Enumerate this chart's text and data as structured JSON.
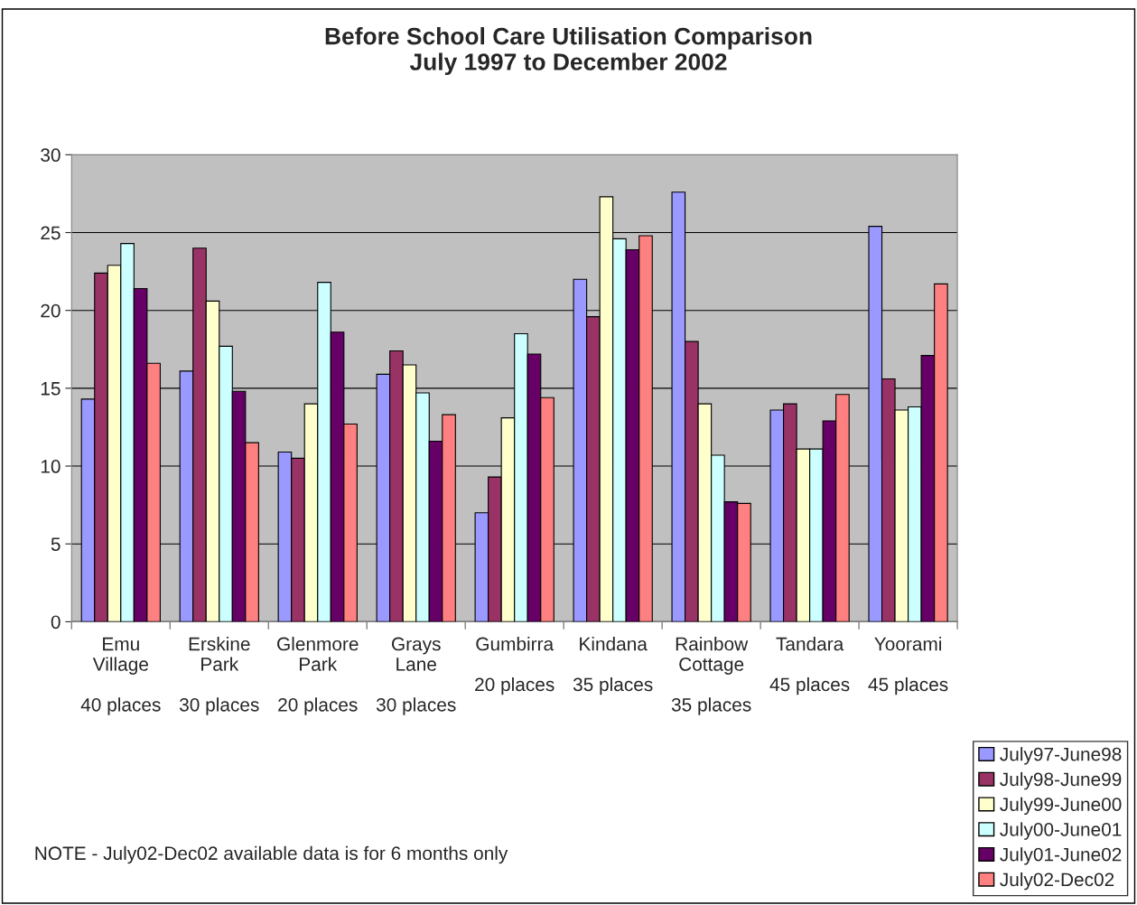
{
  "chart_data": {
    "type": "bar",
    "title": "Before School Care Utilisation Comparison\nJuly 1997 to December 2002",
    "categories": [
      "Emu\nVillage\n\n40 places",
      "Erskine\nPark\n\n30 places",
      "Glenmore\nPark\n\n20 places",
      "Grays\nLane\n\n30 places",
      "Gumbirra\n\n20 places",
      "Kindana\n\n35 places",
      "Rainbow\nCottage\n\n35 places",
      "Tandara\n\n45 places",
      "Yoorami\n\n45 places"
    ],
    "series": [
      {
        "name": "July97-June98",
        "color": "#9999ff",
        "values": [
          14.3,
          16.1,
          10.9,
          15.9,
          7.0,
          22.0,
          27.6,
          13.6,
          25.4
        ]
      },
      {
        "name": "July98-June99",
        "color": "#993366",
        "values": [
          22.4,
          24.0,
          10.5,
          17.4,
          9.3,
          19.6,
          18.0,
          14.0,
          15.6
        ]
      },
      {
        "name": "July99-June00",
        "color": "#ffffcc",
        "values": [
          22.9,
          20.6,
          14.0,
          16.5,
          13.1,
          27.3,
          14.0,
          11.1,
          13.6
        ]
      },
      {
        "name": "July00-June01",
        "color": "#ccffff",
        "values": [
          24.3,
          17.7,
          21.8,
          14.7,
          18.5,
          24.6,
          10.7,
          11.1,
          13.8
        ]
      },
      {
        "name": "July01-June02",
        "color": "#660066",
        "values": [
          21.4,
          14.8,
          18.6,
          11.6,
          17.2,
          23.9,
          7.7,
          12.9,
          17.1
        ]
      },
      {
        "name": "July02-Dec02",
        "color": "#ff8080",
        "values": [
          16.6,
          11.5,
          12.7,
          13.3,
          14.4,
          24.8,
          7.6,
          14.6,
          21.7
        ]
      }
    ],
    "ylim": [
      0,
      30
    ],
    "yticks": [
      0,
      5,
      10,
      15,
      20,
      25,
      30
    ],
    "grid": "y",
    "legend": "bottom right",
    "annotations": [
      "NOTE - July02-Dec02 available data is for 6 months only"
    ]
  }
}
